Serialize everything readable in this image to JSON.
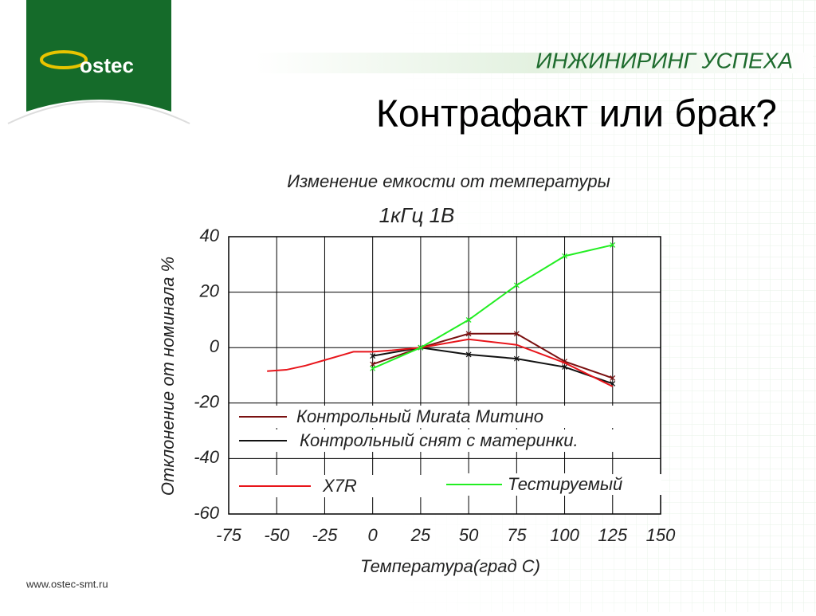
{
  "slide": {
    "logo": "ostec",
    "tagline": "ИНЖИНИРИНГ УСПЕХА",
    "heading": "Контрафакт или брак?",
    "url": "www.ostec-smt.ru"
  },
  "chart_data": {
    "type": "line",
    "title": "Изменение емкости от температуры",
    "subtitle": "1кГц 1В",
    "x_label": "Температура(град С)",
    "y_label": "Отклонение от номинала %",
    "xlim": [
      -75,
      150
    ],
    "xticks": [
      -75,
      -50,
      -25,
      0,
      25,
      50,
      75,
      100,
      125,
      150
    ],
    "ylim": [
      -60,
      40
    ],
    "yticks": [
      -60,
      -40,
      -20,
      0,
      20,
      40
    ],
    "grid": true,
    "legend": "lower left",
    "series": [
      {
        "name": "Контрольный Murata Митино",
        "color": "#7a1010",
        "marker": "x",
        "x": [
          0,
          25,
          50,
          75,
          100,
          125
        ],
        "values": [
          -6,
          0,
          5,
          5,
          -5,
          -11
        ]
      },
      {
        "name": "Контрольный снят с материнки.",
        "color": "#111111",
        "marker": "x",
        "x": [
          0,
          25,
          50,
          75,
          100,
          125
        ],
        "values": [
          -3,
          0,
          -2.5,
          -4,
          -7,
          -13
        ]
      },
      {
        "name": "X7R",
        "color": "#e8151b",
        "x": [
          -55,
          -45,
          -35,
          -25,
          -15,
          -10,
          0,
          10,
          25,
          50,
          75,
          100,
          125
        ],
        "values": [
          -8.5,
          -8,
          -6.5,
          -4.5,
          -2.5,
          -1.5,
          -1.5,
          -1,
          0,
          3,
          1,
          -5.5,
          -14
        ]
      },
      {
        "name": "Тестируемый",
        "color": "#22ee22",
        "marker": "x",
        "x": [
          0,
          25,
          50,
          75,
          100,
          125
        ],
        "values": [
          -7.5,
          0,
          10,
          22.5,
          33,
          37
        ]
      }
    ]
  }
}
